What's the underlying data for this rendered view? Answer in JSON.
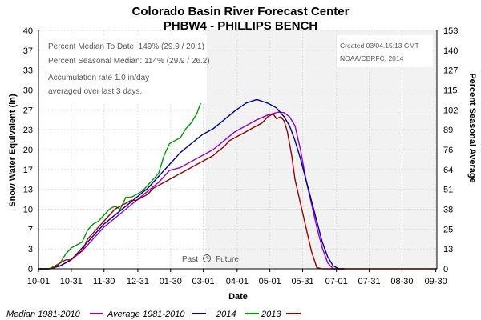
{
  "chart_data": {
    "type": "line",
    "title": "Colorado Basin River Forecast Center",
    "subtitle": "PHBW4 - PHILLIPS BENCH",
    "xlabel": "Date",
    "ylabel": "Snow Water Equivalent (in)",
    "y2label": "Percent Seasonal Average",
    "x_ticks": [
      "10-01",
      "10-31",
      "11-30",
      "12-31",
      "01-30",
      "03-01",
      "04-01",
      "05-01",
      "05-31",
      "07-01",
      "07-31",
      "08-30",
      "09-30"
    ],
    "y_ticks": [
      0,
      3,
      7,
      10,
      13,
      17,
      20,
      23,
      27,
      30,
      33,
      37,
      40
    ],
    "y2_ticks": [
      0,
      13,
      25,
      38,
      51,
      64,
      76,
      89,
      102,
      115,
      127,
      140,
      153
    ],
    "ylim": [
      0,
      40
    ],
    "x_domain_days": [
      0,
      365
    ],
    "notes": {
      "percent_median": "Percent Median To Date: 149% (29.9 / 20.1)",
      "percent_seasonal": "Percent Seasonal Median: 114% (29.9 / 26.2)",
      "accum_line1": "Accumulation rate 1.0 in/day",
      "accum_line2": "averaged over last 3 days.",
      "created": "Created 03/04.15:13 GMT",
      "source": "NOAA/CBRFC, 2014"
    },
    "past_label": "Past",
    "future_label": "Future",
    "today_day": 153,
    "grid": true,
    "legend_position": "bottom",
    "series": [
      {
        "name": "Median 1981-2010",
        "color": "#9900cc",
        "x": [
          0,
          10,
          20,
          30,
          40,
          50,
          60,
          70,
          80,
          90,
          100,
          110,
          120,
          130,
          140,
          150,
          160,
          170,
          180,
          190,
          200,
          210,
          220,
          225,
          230,
          235,
          240,
          245,
          250,
          255,
          260,
          265,
          270,
          280
        ],
        "y": [
          0,
          0,
          0.5,
          1.5,
          3,
          5,
          7,
          8.5,
          10,
          11.5,
          13,
          14.5,
          16.5,
          17,
          18,
          19,
          20,
          21.5,
          23,
          24,
          25,
          25.8,
          26.3,
          26.2,
          25.5,
          24,
          20,
          15,
          11,
          7,
          3.5,
          1,
          0,
          0
        ]
      },
      {
        "name": "Average 1981-2010",
        "color": "#000099",
        "x": [
          0,
          10,
          20,
          30,
          40,
          50,
          60,
          70,
          80,
          90,
          100,
          110,
          120,
          130,
          140,
          150,
          160,
          170,
          180,
          190,
          200,
          210,
          218,
          225,
          230,
          235,
          240,
          245,
          250,
          255,
          260,
          265,
          270,
          275,
          280
        ],
        "y": [
          0,
          0,
          0.5,
          1.5,
          3.5,
          5.5,
          7.5,
          9,
          10.5,
          12,
          13.5,
          15.5,
          17.5,
          19.5,
          21,
          22.5,
          23.5,
          25,
          26.5,
          27.8,
          28.4,
          27.8,
          27,
          25.5,
          24,
          21.5,
          18.5,
          15,
          11.5,
          8,
          4.5,
          2,
          0.5,
          0,
          0
        ]
      },
      {
        "name": "2014",
        "color": "#009900",
        "x": [
          0,
          10,
          15,
          20,
          25,
          30,
          35,
          40,
          45,
          50,
          55,
          60,
          65,
          70,
          75,
          80,
          85,
          90,
          95,
          100,
          105,
          110,
          115,
          120,
          125,
          130,
          135,
          140,
          145,
          150,
          153
        ],
        "y": [
          0,
          0,
          0.5,
          1,
          2.5,
          3.5,
          4,
          4.5,
          6.5,
          7.5,
          8,
          9,
          10,
          10.5,
          10,
          12,
          12,
          12.5,
          13,
          14,
          15,
          16,
          19,
          21,
          21.5,
          22,
          23.5,
          24.5,
          26,
          28.5,
          30.5
        ]
      },
      {
        "name": "2013",
        "color": "#990000",
        "x": [
          0,
          10,
          15,
          20,
          25,
          30,
          35,
          40,
          45,
          50,
          55,
          60,
          65,
          70,
          75,
          80,
          85,
          90,
          95,
          100,
          105,
          110,
          115,
          120,
          125,
          130,
          135,
          140,
          145,
          150,
          155,
          160,
          165,
          170,
          175,
          180,
          185,
          190,
          195,
          200,
          205,
          210,
          215,
          218,
          222,
          225,
          228,
          230,
          232,
          235,
          240,
          245,
          250,
          255,
          260,
          270,
          280,
          300,
          320,
          340,
          365
        ],
        "y": [
          0,
          0,
          0.2,
          1,
          1.5,
          1.5,
          2.5,
          3,
          5,
          6,
          7,
          8,
          9,
          10,
          10.5,
          11,
          11.5,
          11.5,
          12,
          12.5,
          13.5,
          14,
          14.5,
          15,
          15.5,
          16,
          16.5,
          17,
          17.5,
          18,
          18.5,
          19,
          19.8,
          20.5,
          21.5,
          22,
          22.5,
          23,
          23.5,
          24,
          24.5,
          25.5,
          26,
          25.2,
          25.5,
          24.8,
          23,
          21,
          19,
          15,
          11,
          7,
          3,
          0.2,
          0,
          0,
          0,
          0,
          0,
          0,
          0
        ]
      }
    ]
  }
}
